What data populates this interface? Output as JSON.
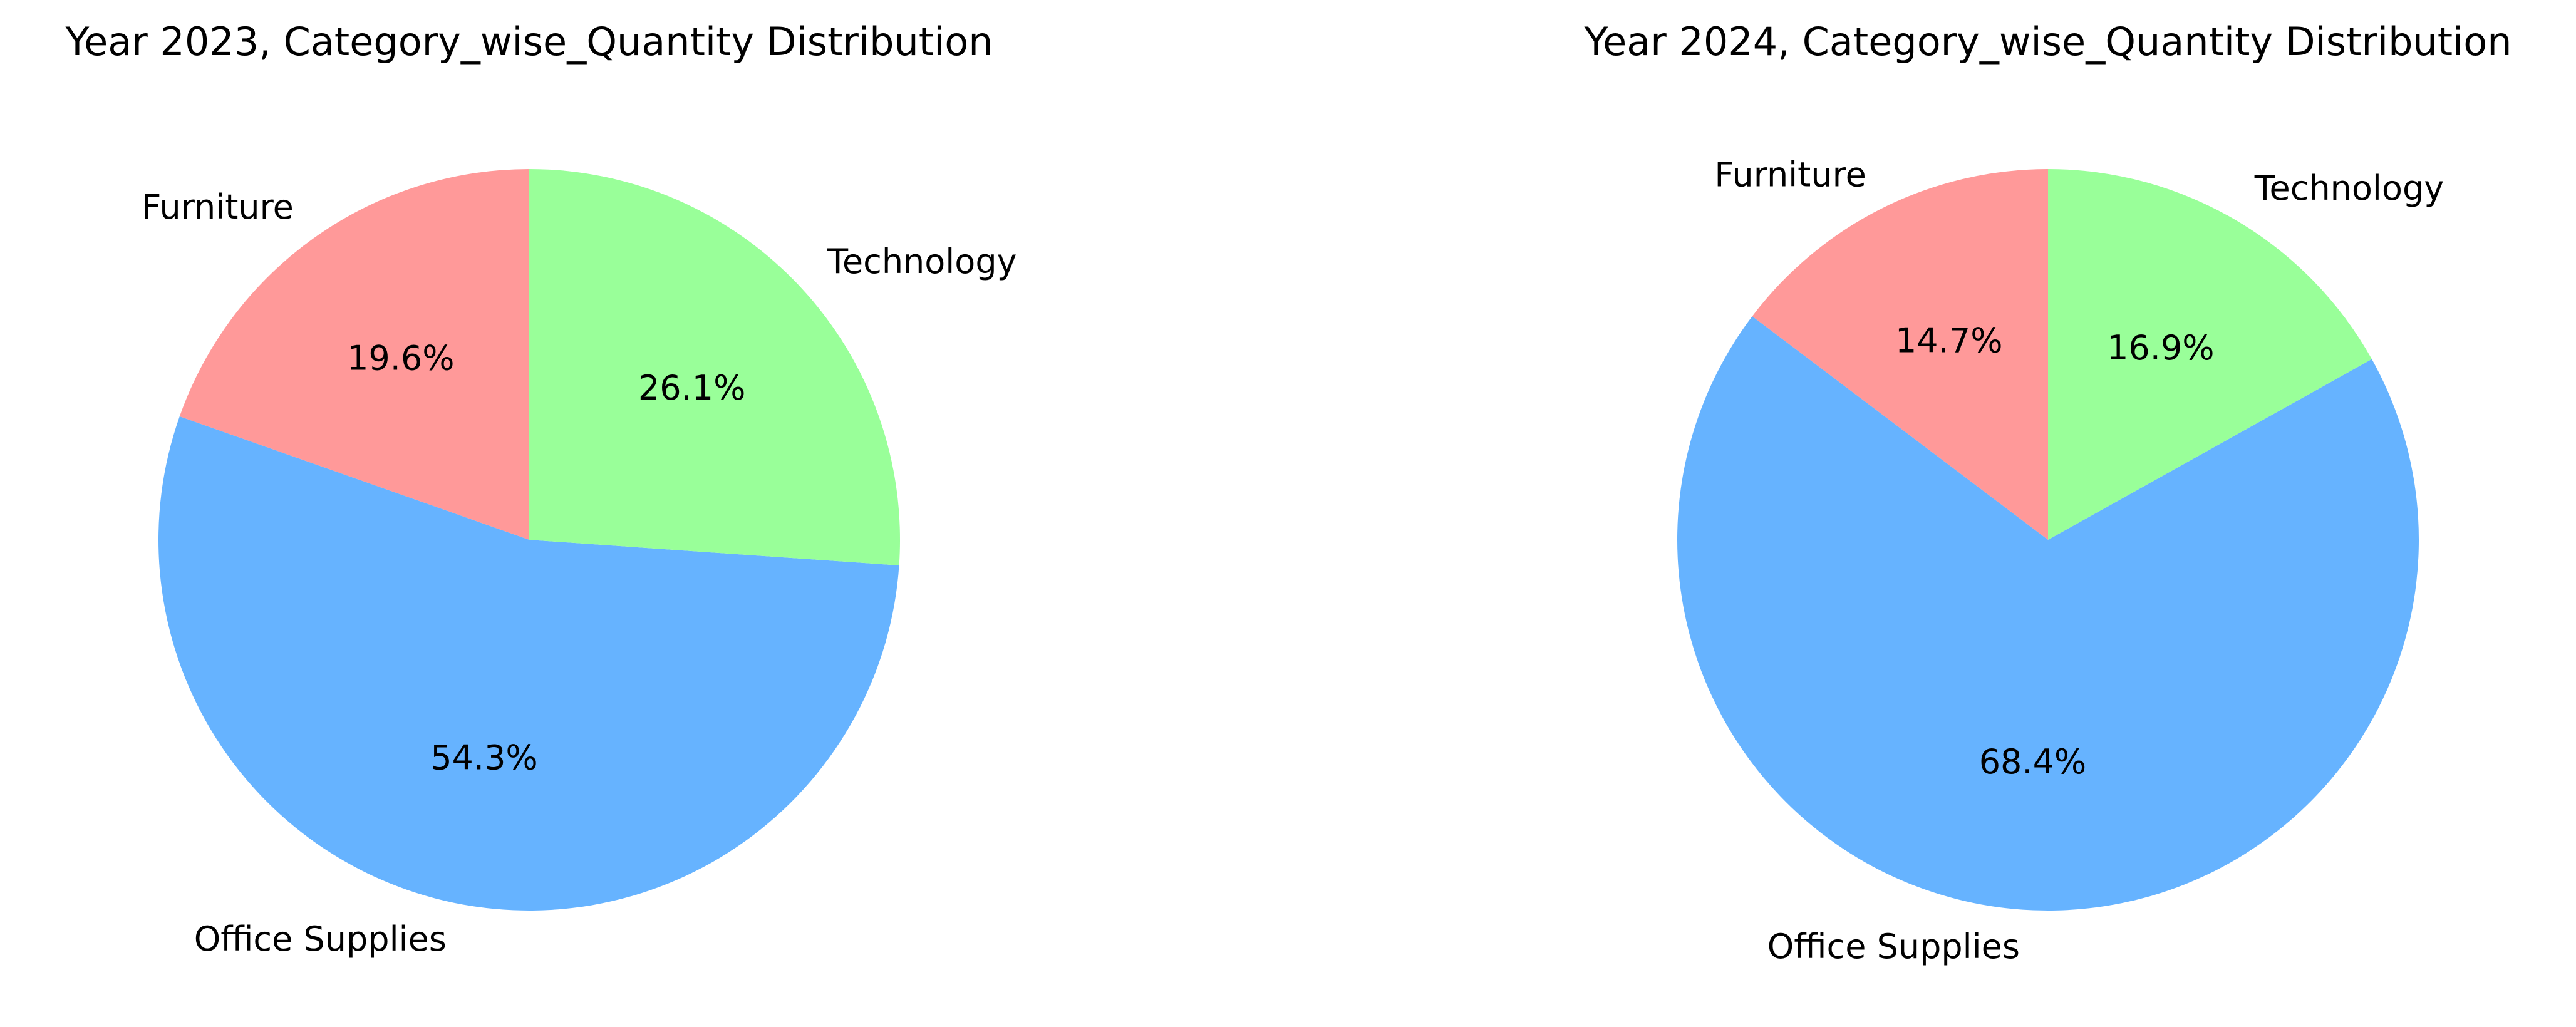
{
  "chart_data": [
    {
      "type": "pie",
      "title": "Year 2023, Category_wise_Quantity Distribution",
      "categories": [
        "Furniture",
        "Office Supplies",
        "Technology"
      ],
      "values": [
        19.6,
        54.3,
        26.1
      ],
      "value_labels": [
        "19.6%",
        "54.3%",
        "26.1%"
      ],
      "colors": [
        "#ff9999",
        "#66b3ff",
        "#99ff99"
      ],
      "start_angle_deg": 90,
      "direction": "counterclockwise",
      "legend": "none"
    },
    {
      "type": "pie",
      "title": "Year 2024, Category_wise_Quantity Distribution",
      "categories": [
        "Furniture",
        "Office Supplies",
        "Technology"
      ],
      "values": [
        14.7,
        68.4,
        16.9
      ],
      "value_labels": [
        "14.7%",
        "68.4%",
        "16.9%"
      ],
      "colors": [
        "#ff9999",
        "#66b3ff",
        "#99ff99"
      ],
      "start_angle_deg": 90,
      "direction": "counterclockwise",
      "legend": "none"
    }
  ]
}
